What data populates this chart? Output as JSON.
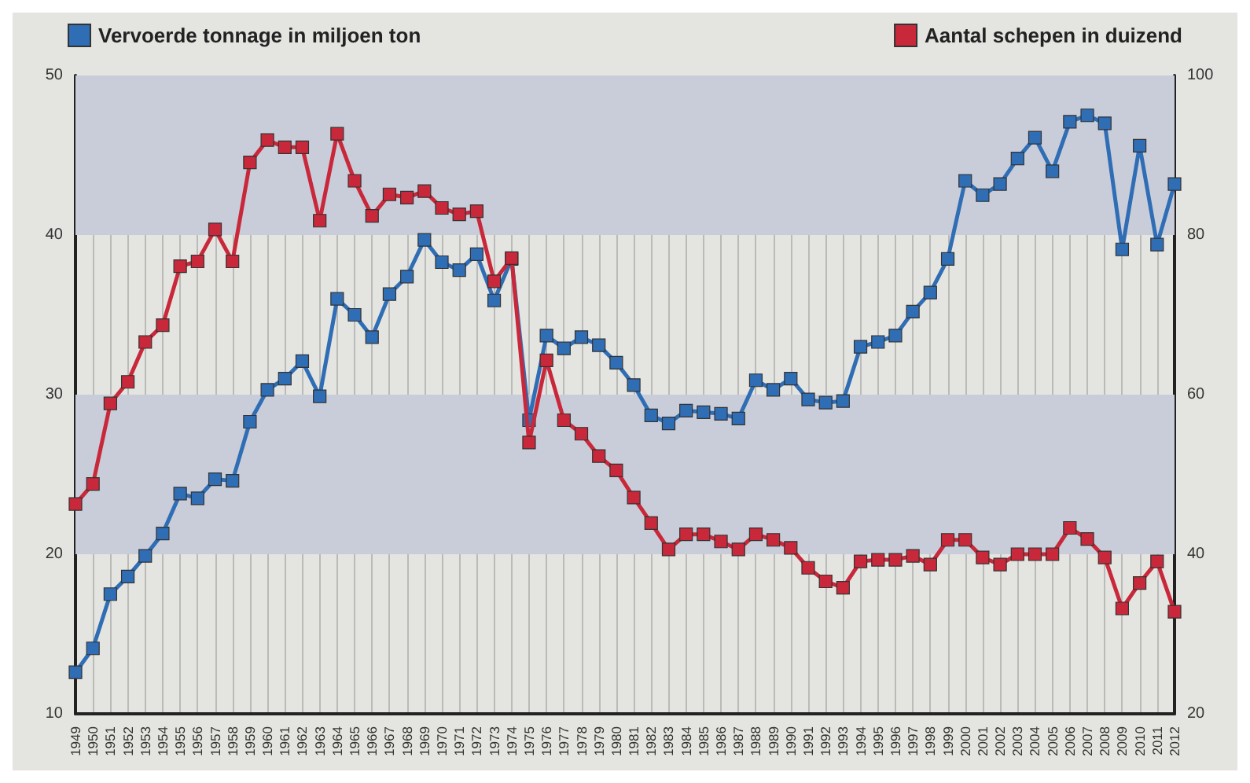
{
  "chart_data": {
    "type": "line",
    "categories": [
      "1949",
      "1950",
      "1951",
      "1952",
      "1953",
      "1954",
      "1955",
      "1956",
      "1957",
      "1958",
      "1959",
      "1960",
      "1961",
      "1962",
      "1963",
      "1964",
      "1965",
      "1966",
      "1967",
      "1968",
      "1969",
      "1970",
      "1971",
      "1972",
      "1973",
      "1974",
      "1975",
      "1976",
      "1977",
      "1978",
      "1979",
      "1980",
      "1981",
      "1982",
      "1983",
      "1984",
      "1985",
      "1986",
      "1987",
      "1988",
      "1989",
      "1990",
      "1991",
      "1992",
      "1993",
      "1994",
      "1995",
      "1996",
      "1997",
      "1998",
      "1999",
      "2000",
      "2001",
      "2002",
      "2003",
      "2004",
      "2005",
      "2006",
      "2007",
      "2008",
      "2009",
      "2010",
      "2011",
      "2012"
    ],
    "series": [
      {
        "name": "Vervoerde tonnage in miljoen ton",
        "color": "#2f6db5",
        "values": [
          12.6,
          14.1,
          17.5,
          18.6,
          19.9,
          21.3,
          23.8,
          23.5,
          24.7,
          24.6,
          28.3,
          30.3,
          31.0,
          32.1,
          29.9,
          36.0,
          35.0,
          33.6,
          36.3,
          37.4,
          39.7,
          38.3,
          37.8,
          38.8,
          35.9,
          38.5,
          28.4,
          33.7,
          32.9,
          33.6,
          33.1,
          32.0,
          30.6,
          28.7,
          28.2,
          29.0,
          28.9,
          28.8,
          28.5,
          30.9,
          30.3,
          31.0,
          29.7,
          29.5,
          29.6,
          33.0,
          33.3,
          33.7,
          35.2,
          36.4,
          38.5,
          43.4,
          42.5,
          43.2,
          44.8,
          46.1,
          44.0,
          47.1,
          47.5,
          47.0,
          39.1,
          45.6,
          39.4,
          43.2
        ]
      },
      {
        "name": "Aantal schepen in duizend",
        "color": "#c8283a",
        "axis": "y2",
        "values": [
          46.3,
          48.8,
          58.9,
          61.6,
          66.6,
          68.7,
          76.1,
          76.7,
          80.7,
          76.7,
          89.1,
          91.9,
          91.0,
          91.0,
          81.8,
          92.7,
          86.8,
          82.4,
          85.1,
          84.7,
          85.5,
          83.4,
          82.6,
          83.0,
          74.2,
          77.1,
          54.0,
          64.3,
          56.8,
          55.1,
          52.3,
          50.5,
          47.1,
          43.9,
          40.6,
          42.5,
          42.5,
          41.6,
          40.6,
          42.5,
          41.8,
          40.8,
          38.3,
          36.6,
          35.8,
          39.1,
          39.3,
          39.3,
          39.8,
          38.7,
          41.8,
          41.8,
          39.6,
          38.7,
          40.0,
          40.0,
          40.0,
          43.3,
          41.9,
          39.6,
          33.2,
          36.4,
          39.1,
          32.8
        ]
      }
    ],
    "ylim": [
      10,
      50
    ],
    "yticks": [
      10,
      20,
      30,
      40,
      50
    ],
    "y2lim": [
      20,
      100
    ],
    "y2ticks": [
      20,
      40,
      60,
      80,
      100
    ],
    "bands": [
      {
        "axis": "y",
        "from": 40,
        "to": 50,
        "color": "#c9cdd9"
      },
      {
        "axis": "y",
        "from": 20,
        "to": 30,
        "color": "#c9cdd9"
      }
    ],
    "grid": "x",
    "legend": "top",
    "marker": "square",
    "line_style": "solid"
  }
}
